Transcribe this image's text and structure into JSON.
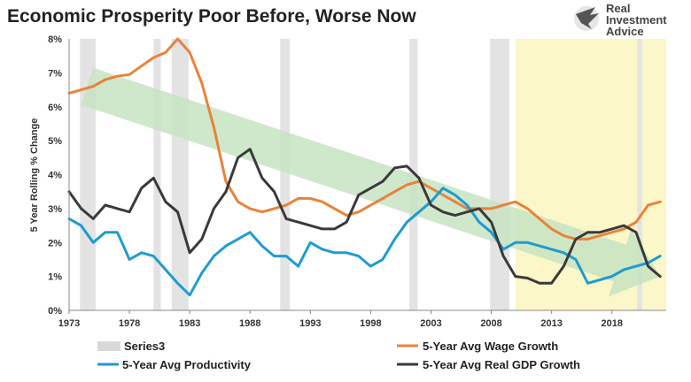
{
  "chart_data": {
    "type": "line",
    "title": "Economic Prosperity Poor Before, Worse Now",
    "ylabel": "5 Year Rolling % Change",
    "xlabel": "",
    "xlim": [
      1973,
      2022.5
    ],
    "ylim": [
      0,
      8
    ],
    "x_ticks": [
      "1973",
      "1978",
      "1983",
      "1988",
      "1993",
      "1998",
      "2003",
      "2008",
      "2013",
      "2018"
    ],
    "y_ticks": [
      "0%",
      "1%",
      "2%",
      "3%",
      "4%",
      "5%",
      "6%",
      "7%",
      "8%"
    ],
    "grid": false,
    "legend": "bottom",
    "recession_bands": [
      [
        1973.9,
        1975.2
      ],
      [
        1980.0,
        1980.6
      ],
      [
        1981.5,
        1982.9
      ],
      [
        1990.5,
        1991.3
      ],
      [
        2001.2,
        2001.9
      ],
      [
        2007.9,
        2009.5
      ],
      [
        2020.1,
        2020.5
      ]
    ],
    "highlight_region": [
      2010.0,
      2022.5
    ],
    "trend_arrow": {
      "from": [
        1974.5,
        6.6
      ],
      "to": [
        2022,
        1.0
      ]
    },
    "series": [
      {
        "name": "Series3",
        "color": "#d9d9d9",
        "type": "band"
      },
      {
        "name": "5-Year Avg Wage Growth",
        "color": "#e8833a",
        "points": [
          [
            1973,
            6.4
          ],
          [
            1974,
            6.5
          ],
          [
            1975,
            6.6
          ],
          [
            1976,
            6.8
          ],
          [
            1977,
            6.9
          ],
          [
            1978,
            6.95
          ],
          [
            1979,
            7.2
          ],
          [
            1980,
            7.45
          ],
          [
            1981,
            7.6
          ],
          [
            1982,
            8.0
          ],
          [
            1983,
            7.6
          ],
          [
            1984,
            6.7
          ],
          [
            1985,
            5.4
          ],
          [
            1986,
            3.8
          ],
          [
            1987,
            3.2
          ],
          [
            1988,
            3.0
          ],
          [
            1989,
            2.9
          ],
          [
            1990,
            3.0
          ],
          [
            1991,
            3.1
          ],
          [
            1992,
            3.3
          ],
          [
            1993,
            3.3
          ],
          [
            1994,
            3.2
          ],
          [
            1995,
            3.0
          ],
          [
            1996,
            2.8
          ],
          [
            1997,
            2.9
          ],
          [
            1998,
            3.1
          ],
          [
            1999,
            3.3
          ],
          [
            2000,
            3.5
          ],
          [
            2001,
            3.7
          ],
          [
            2002,
            3.8
          ],
          [
            2003,
            3.6
          ],
          [
            2004,
            3.4
          ],
          [
            2005,
            3.2
          ],
          [
            2006,
            3.0
          ],
          [
            2007,
            3.0
          ],
          [
            2008,
            3.0
          ],
          [
            2009,
            3.1
          ],
          [
            2010,
            3.2
          ],
          [
            2011,
            3.0
          ],
          [
            2012,
            2.7
          ],
          [
            2013,
            2.4
          ],
          [
            2014,
            2.2
          ],
          [
            2015,
            2.1
          ],
          [
            2016,
            2.1
          ],
          [
            2017,
            2.2
          ],
          [
            2018,
            2.3
          ],
          [
            2019,
            2.4
          ],
          [
            2020,
            2.6
          ],
          [
            2021,
            3.1
          ],
          [
            2022,
            3.2
          ]
        ]
      },
      {
        "name": "5-Year Avg Productivity",
        "color": "#1f9bd1",
        "points": [
          [
            1973,
            2.7
          ],
          [
            1974,
            2.5
          ],
          [
            1975,
            2.0
          ],
          [
            1976,
            2.3
          ],
          [
            1977,
            2.3
          ],
          [
            1978,
            1.5
          ],
          [
            1979,
            1.7
          ],
          [
            1980,
            1.6
          ],
          [
            1981,
            1.2
          ],
          [
            1982,
            0.8
          ],
          [
            1983,
            0.45
          ],
          [
            1984,
            1.1
          ],
          [
            1985,
            1.6
          ],
          [
            1986,
            1.9
          ],
          [
            1987,
            2.1
          ],
          [
            1988,
            2.3
          ],
          [
            1989,
            1.9
          ],
          [
            1990,
            1.6
          ],
          [
            1991,
            1.6
          ],
          [
            1992,
            1.3
          ],
          [
            1993,
            2.0
          ],
          [
            1994,
            1.8
          ],
          [
            1995,
            1.7
          ],
          [
            1996,
            1.7
          ],
          [
            1997,
            1.6
          ],
          [
            1998,
            1.3
          ],
          [
            1999,
            1.5
          ],
          [
            2000,
            2.1
          ],
          [
            2001,
            2.6
          ],
          [
            2002,
            2.9
          ],
          [
            2003,
            3.2
          ],
          [
            2004,
            3.6
          ],
          [
            2005,
            3.4
          ],
          [
            2006,
            3.1
          ],
          [
            2007,
            2.6
          ],
          [
            2008,
            2.3
          ],
          [
            2009,
            1.8
          ],
          [
            2010,
            2.0
          ],
          [
            2011,
            2.0
          ],
          [
            2012,
            1.9
          ],
          [
            2013,
            1.8
          ],
          [
            2014,
            1.7
          ],
          [
            2015,
            1.5
          ],
          [
            2016,
            0.8
          ],
          [
            2017,
            0.9
          ],
          [
            2018,
            1.0
          ],
          [
            2019,
            1.2
          ],
          [
            2020,
            1.3
          ],
          [
            2021,
            1.4
          ],
          [
            2022,
            1.6
          ]
        ]
      },
      {
        "name": "5-Year Avg Real GDP Growth",
        "color": "#3a3a3a",
        "points": [
          [
            1973,
            3.5
          ],
          [
            1974,
            3.0
          ],
          [
            1975,
            2.7
          ],
          [
            1976,
            3.1
          ],
          [
            1977,
            3.0
          ],
          [
            1978,
            2.9
          ],
          [
            1979,
            3.6
          ],
          [
            1980,
            3.9
          ],
          [
            1981,
            3.2
          ],
          [
            1982,
            2.9
          ],
          [
            1983,
            1.7
          ],
          [
            1984,
            2.1
          ],
          [
            1985,
            3.0
          ],
          [
            1986,
            3.5
          ],
          [
            1987,
            4.5
          ],
          [
            1988,
            4.75
          ],
          [
            1989,
            3.9
          ],
          [
            1990,
            3.5
          ],
          [
            1991,
            2.7
          ],
          [
            1992,
            2.6
          ],
          [
            1993,
            2.5
          ],
          [
            1994,
            2.4
          ],
          [
            1995,
            2.4
          ],
          [
            1996,
            2.6
          ],
          [
            1997,
            3.4
          ],
          [
            1998,
            3.6
          ],
          [
            1999,
            3.8
          ],
          [
            2000,
            4.2
          ],
          [
            2001,
            4.25
          ],
          [
            2002,
            3.9
          ],
          [
            2003,
            3.1
          ],
          [
            2004,
            2.9
          ],
          [
            2005,
            2.8
          ],
          [
            2006,
            2.9
          ],
          [
            2007,
            3.0
          ],
          [
            2008,
            2.6
          ],
          [
            2009,
            1.6
          ],
          [
            2010,
            1.0
          ],
          [
            2011,
            0.95
          ],
          [
            2012,
            0.8
          ],
          [
            2013,
            0.8
          ],
          [
            2014,
            1.3
          ],
          [
            2015,
            2.1
          ],
          [
            2016,
            2.3
          ],
          [
            2017,
            2.3
          ],
          [
            2018,
            2.4
          ],
          [
            2019,
            2.5
          ],
          [
            2020,
            2.3
          ],
          [
            2021,
            1.3
          ],
          [
            2022,
            1.0
          ]
        ]
      }
    ]
  },
  "legend": {
    "series3": "Series3",
    "wage": "5-Year Avg Wage Growth",
    "productivity": "5-Year Avg Productivity",
    "gdp": "5-Year Avg Real GDP Growth"
  },
  "logo": {
    "line1": "Real",
    "line2": "Investment",
    "line3": "Advice"
  },
  "colors": {
    "band": "#e3e3e3",
    "highlight": "#fbf7c8",
    "arrow": "#c7e3c2",
    "wage": "#e8833a",
    "productivity": "#1f9bd1",
    "gdp": "#3a3a3a"
  }
}
